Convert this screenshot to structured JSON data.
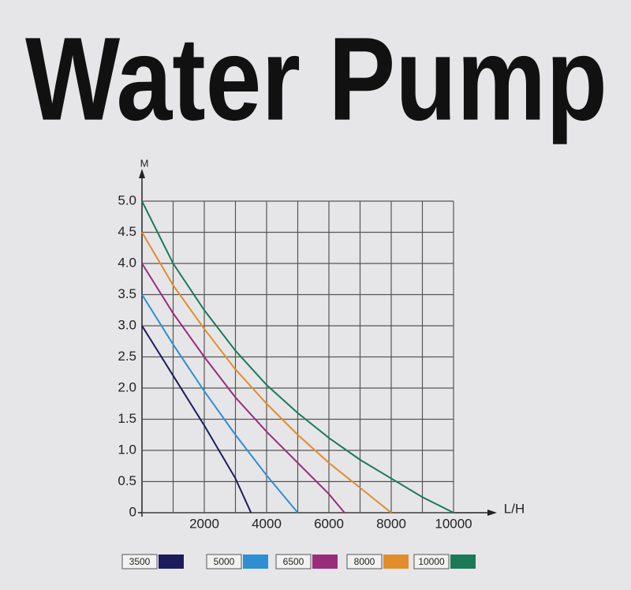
{
  "chart_data": {
    "type": "line",
    "title": "Water Pump",
    "ylabel": "M",
    "xlabel": "L/H",
    "xlim": [
      0,
      10000
    ],
    "ylim": [
      0,
      5
    ],
    "xticks": [
      2000,
      4000,
      6000,
      8000,
      10000
    ],
    "minor_xticks": [
      1000,
      3000,
      5000,
      7000,
      9000
    ],
    "yticks": [
      0,
      {
        "value": 0.5,
        "label": "0.5"
      },
      {
        "value": 1,
        "label": "1.0"
      },
      {
        "value": 1.5,
        "label": "1.5"
      },
      {
        "value": 2,
        "label": "2.0"
      },
      {
        "value": 2.5,
        "label": "2.5"
      },
      {
        "value": 3,
        "label": "3.0"
      },
      {
        "value": 3.5,
        "label": "3.5"
      },
      {
        "value": 4,
        "label": "4.0"
      },
      {
        "value": 4.5,
        "label": "4.5"
      },
      {
        "value": 5,
        "label": "5.0"
      }
    ],
    "grid": true,
    "series": [
      {
        "name": "3500",
        "color": "#1c1c5c",
        "x": [
          0,
          1000,
          2000,
          3000,
          3500
        ],
        "values": [
          3.0,
          2.2,
          1.4,
          0.55,
          0
        ]
      },
      {
        "name": "5000",
        "color": "#2e8fd2",
        "x": [
          0,
          1000,
          2000,
          3000,
          4000,
          5000
        ],
        "values": [
          3.5,
          2.7,
          1.95,
          1.25,
          0.6,
          0
        ]
      },
      {
        "name": "6500",
        "color": "#9a2c7c",
        "x": [
          0,
          1000,
          2000,
          3000,
          4000,
          5000,
          6000,
          6500
        ],
        "values": [
          4.0,
          3.2,
          2.5,
          1.85,
          1.3,
          0.8,
          0.3,
          0
        ]
      },
      {
        "name": "8000",
        "color": "#e38c2c",
        "x": [
          0,
          1000,
          2000,
          3000,
          4000,
          5000,
          6000,
          7000,
          8000
        ],
        "values": [
          4.5,
          3.65,
          2.95,
          2.3,
          1.75,
          1.25,
          0.8,
          0.4,
          0
        ]
      },
      {
        "name": "10000",
        "color": "#1b7a58",
        "x": [
          0,
          1000,
          2000,
          3000,
          4000,
          5000,
          6000,
          7000,
          8000,
          9000,
          10000
        ],
        "values": [
          5.0,
          4.0,
          3.25,
          2.6,
          2.05,
          1.6,
          1.2,
          0.85,
          0.55,
          0.25,
          0
        ]
      }
    ]
  }
}
